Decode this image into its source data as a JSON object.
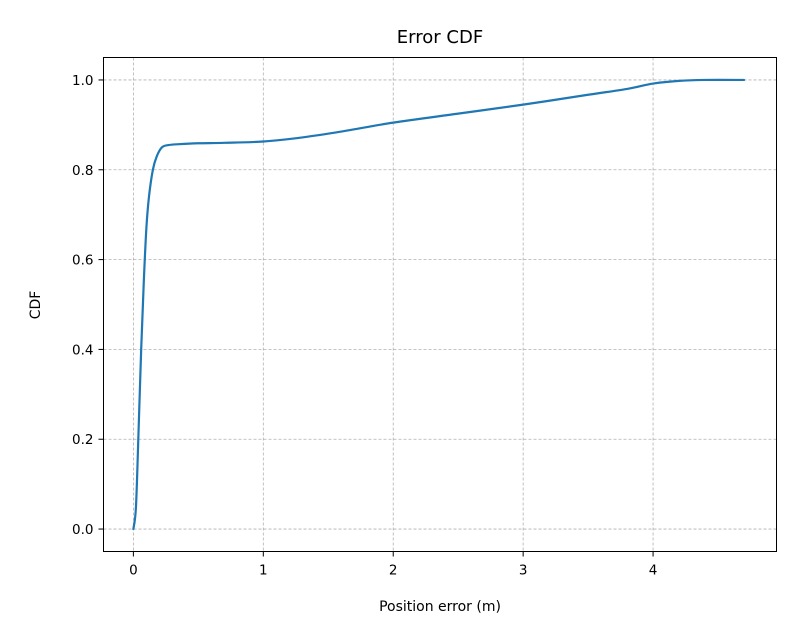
{
  "chart_data": {
    "type": "line",
    "title": "Error CDF",
    "xlabel": "Position error (m)",
    "ylabel": "CDF",
    "xlim": [
      -0.23,
      4.95
    ],
    "ylim": [
      -0.05,
      1.05
    ],
    "xticks": [
      0,
      1,
      2,
      3,
      4
    ],
    "xtick_labels": [
      "0",
      "1",
      "2",
      "3",
      "4"
    ],
    "yticks": [
      0.0,
      0.2,
      0.4,
      0.6,
      0.8,
      1.0
    ],
    "ytick_labels": [
      "0.0",
      "0.2",
      "0.4",
      "0.6",
      "0.8",
      "1.0"
    ],
    "grid": true,
    "colors": {
      "line": "#1f77b4",
      "grid": "#b0b0b0"
    },
    "series": [
      {
        "x": [
          0.0,
          0.02,
          0.04,
          0.06,
          0.08,
          0.1,
          0.12,
          0.15,
          0.18,
          0.22,
          0.27,
          0.35,
          0.5,
          0.7,
          1.0,
          1.3,
          1.6,
          2.0,
          2.5,
          3.0,
          3.5,
          3.8,
          4.0,
          4.2,
          4.4,
          4.7
        ],
        "y": [
          0.0,
          0.05,
          0.22,
          0.4,
          0.55,
          0.67,
          0.74,
          0.8,
          0.83,
          0.85,
          0.855,
          0.857,
          0.859,
          0.86,
          0.863,
          0.872,
          0.885,
          0.905,
          0.925,
          0.945,
          0.967,
          0.98,
          0.992,
          0.998,
          1.0,
          1.0
        ]
      }
    ]
  }
}
